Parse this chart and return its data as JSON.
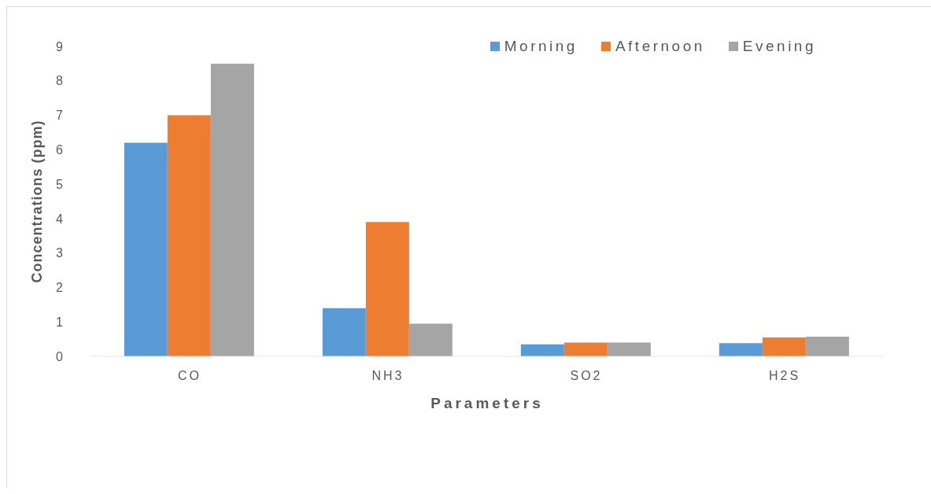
{
  "chart_data": {
    "type": "bar",
    "xlabel": "Parameters",
    "ylabel": "Concentrations (ppm)",
    "categories": [
      "CO",
      "NH3",
      "SO2",
      "H2S"
    ],
    "series": [
      {
        "name": "Morning",
        "color": "#5b9bd5",
        "values": [
          6.2,
          1.4,
          0.35,
          0.38
        ]
      },
      {
        "name": "Afternoon",
        "color": "#ed7d31",
        "values": [
          7.0,
          3.9,
          0.4,
          0.55
        ]
      },
      {
        "name": "Evening",
        "color": "#a5a5a5",
        "values": [
          8.5,
          0.95,
          0.4,
          0.57
        ]
      }
    ],
    "ylim": [
      0,
      9
    ],
    "yticks": [
      0,
      1,
      2,
      3,
      4,
      5,
      6,
      7,
      8,
      9
    ],
    "legend": "top right"
  }
}
